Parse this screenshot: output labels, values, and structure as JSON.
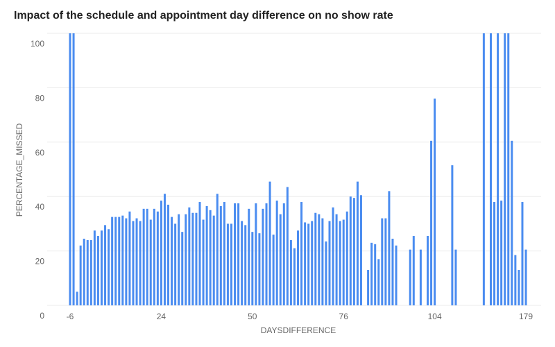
{
  "chart_data": {
    "type": "bar",
    "title": "Impact of the schedule and appointment day difference on no show rate",
    "x_label": "DAYSDIFFERENCE",
    "y_label": "PERCENTAGE_MISSED",
    "color": "#4a8cf0",
    "grid": true,
    "ylim": [
      0,
      100
    ],
    "yticks": [
      0,
      20,
      40,
      60,
      80,
      100
    ],
    "categories": [
      "-6",
      null,
      null,
      null,
      null,
      null,
      null,
      null,
      null,
      null,
      null,
      null,
      null,
      null,
      null,
      null,
      null,
      null,
      null,
      null,
      null,
      null,
      null,
      null,
      null,
      null,
      "24",
      null,
      null,
      null,
      null,
      null,
      null,
      null,
      null,
      null,
      null,
      null,
      null,
      null,
      null,
      null,
      null,
      null,
      null,
      null,
      null,
      null,
      null,
      null,
      null,
      null,
      "50",
      null,
      null,
      null,
      null,
      null,
      null,
      null,
      null,
      null,
      null,
      null,
      null,
      null,
      null,
      null,
      null,
      null,
      null,
      null,
      null,
      null,
      null,
      null,
      null,
      null,
      "76",
      null,
      null,
      null,
      null,
      null,
      null,
      null,
      null,
      null,
      null,
      null,
      null,
      null,
      null,
      null,
      null,
      null,
      null,
      null,
      null,
      null,
      null,
      null,
      null,
      null,
      "104",
      null,
      null,
      null,
      null,
      null,
      null,
      null,
      null,
      null,
      null,
      null,
      null,
      null,
      null,
      null,
      null,
      null,
      null,
      null,
      null,
      null,
      null,
      null,
      null,
      null,
      "179"
    ],
    "values": [
      100,
      100,
      5,
      22,
      24.5,
      24,
      24,
      27.5,
      25.5,
      27.5,
      29.5,
      28,
      32.5,
      32.5,
      32.5,
      33,
      32,
      34.5,
      31,
      32,
      31,
      35.5,
      35.5,
      31.5,
      35.5,
      34.5,
      38.5,
      41,
      37,
      32.5,
      30,
      33.5,
      27,
      33.5,
      36,
      34,
      34,
      38,
      31.5,
      36.5,
      35,
      33,
      41,
      36.5,
      38,
      30,
      30,
      37.5,
      37.5,
      31,
      29.5,
      35.5,
      27,
      37.5,
      26.5,
      35.5,
      37.5,
      45.5,
      26,
      38.5,
      33.5,
      37.5,
      43.5,
      24,
      21,
      27.5,
      38,
      30.5,
      30,
      31,
      34,
      33.5,
      32,
      23.5,
      31,
      36,
      33.5,
      31,
      31.5,
      34.5,
      40,
      39.5,
      45.5,
      40.5,
      0,
      13,
      23,
      22.5,
      17,
      32,
      32,
      42,
      24.5,
      22,
      0,
      0,
      0,
      20.5,
      25.5,
      0,
      20.5,
      0,
      25.5,
      60.5,
      76,
      0,
      0,
      0,
      0,
      51.5,
      20.5,
      0,
      0,
      0,
      0,
      0,
      0,
      0,
      100,
      0,
      100,
      38,
      100,
      38.5,
      100,
      100,
      60.5,
      18.5,
      13,
      38,
      20.5
    ]
  }
}
